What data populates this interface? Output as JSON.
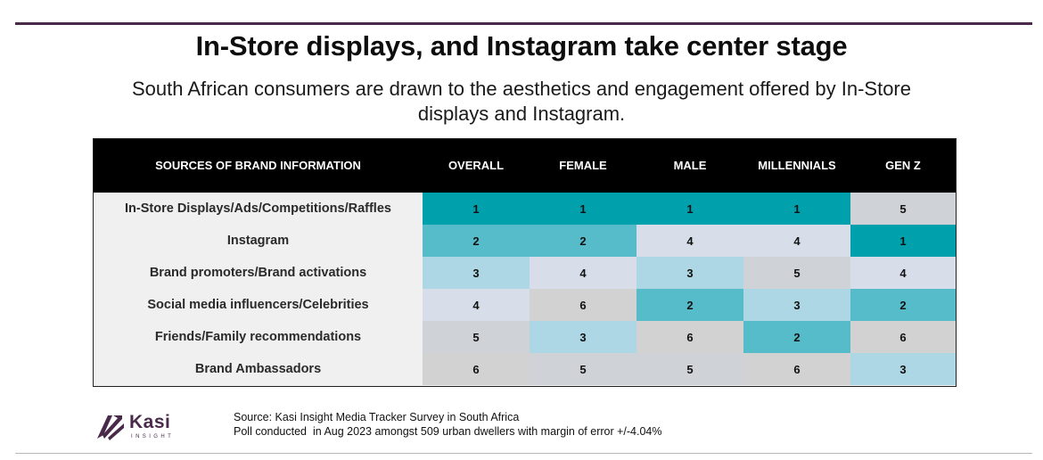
{
  "title": "In-Store displays, and Instagram take center stage",
  "subtitle": "South African consumers are drawn to the aesthetics and engagement offered by In-Store displays and Instagram.",
  "colors": {
    "rank_1": "#00a0ad",
    "rank_2": "#56bcca",
    "rank_3": "#add7e4",
    "rank_4": "#d7dde9",
    "rank_5": "#cfd3d8",
    "rank_6": "#d2d2d2",
    "header_bg": "#000000",
    "brand": "#4a2a4a"
  },
  "chart_data": {
    "type": "table",
    "title": "In-Store displays, and Instagram take center stage",
    "columns": [
      "SOURCES OF BRAND INFORMATION",
      "OVERALL",
      "FEMALE",
      "MALE",
      "MILLENNIALS",
      "GEN Z"
    ],
    "rows": [
      {
        "label": "In-Store Displays/Ads/Competitions/Raffles",
        "values": [
          "1",
          "1",
          "1",
          "1",
          "5"
        ]
      },
      {
        "label": "Instagram",
        "values": [
          "2",
          "2",
          "4",
          "4",
          "1"
        ]
      },
      {
        "label": "Brand promoters/Brand activations",
        "values": [
          "3",
          "4",
          "3",
          "5",
          "4"
        ]
      },
      {
        "label": "Social media influencers/Celebrities",
        "values": [
          "4",
          "6",
          "2",
          "3",
          "2"
        ]
      },
      {
        "label": "Friends/Family recommendations",
        "values": [
          "5",
          "3",
          "6",
          "2",
          "6"
        ]
      },
      {
        "label": "Brand Ambassadors",
        "values": [
          "6",
          "5",
          "5",
          "6",
          "3"
        ]
      }
    ]
  },
  "logo": {
    "name": "Kasi",
    "tagline": "INSIGHT",
    "icon": "kasi-arrow-icon"
  },
  "footnote": {
    "line1": "Source: Kasi Insight Media Tracker Survey in South Africa",
    "line2": "Poll conducted  in Aug 2023 amongst 509 urban dwellers with margin of error +/-4.04%"
  }
}
